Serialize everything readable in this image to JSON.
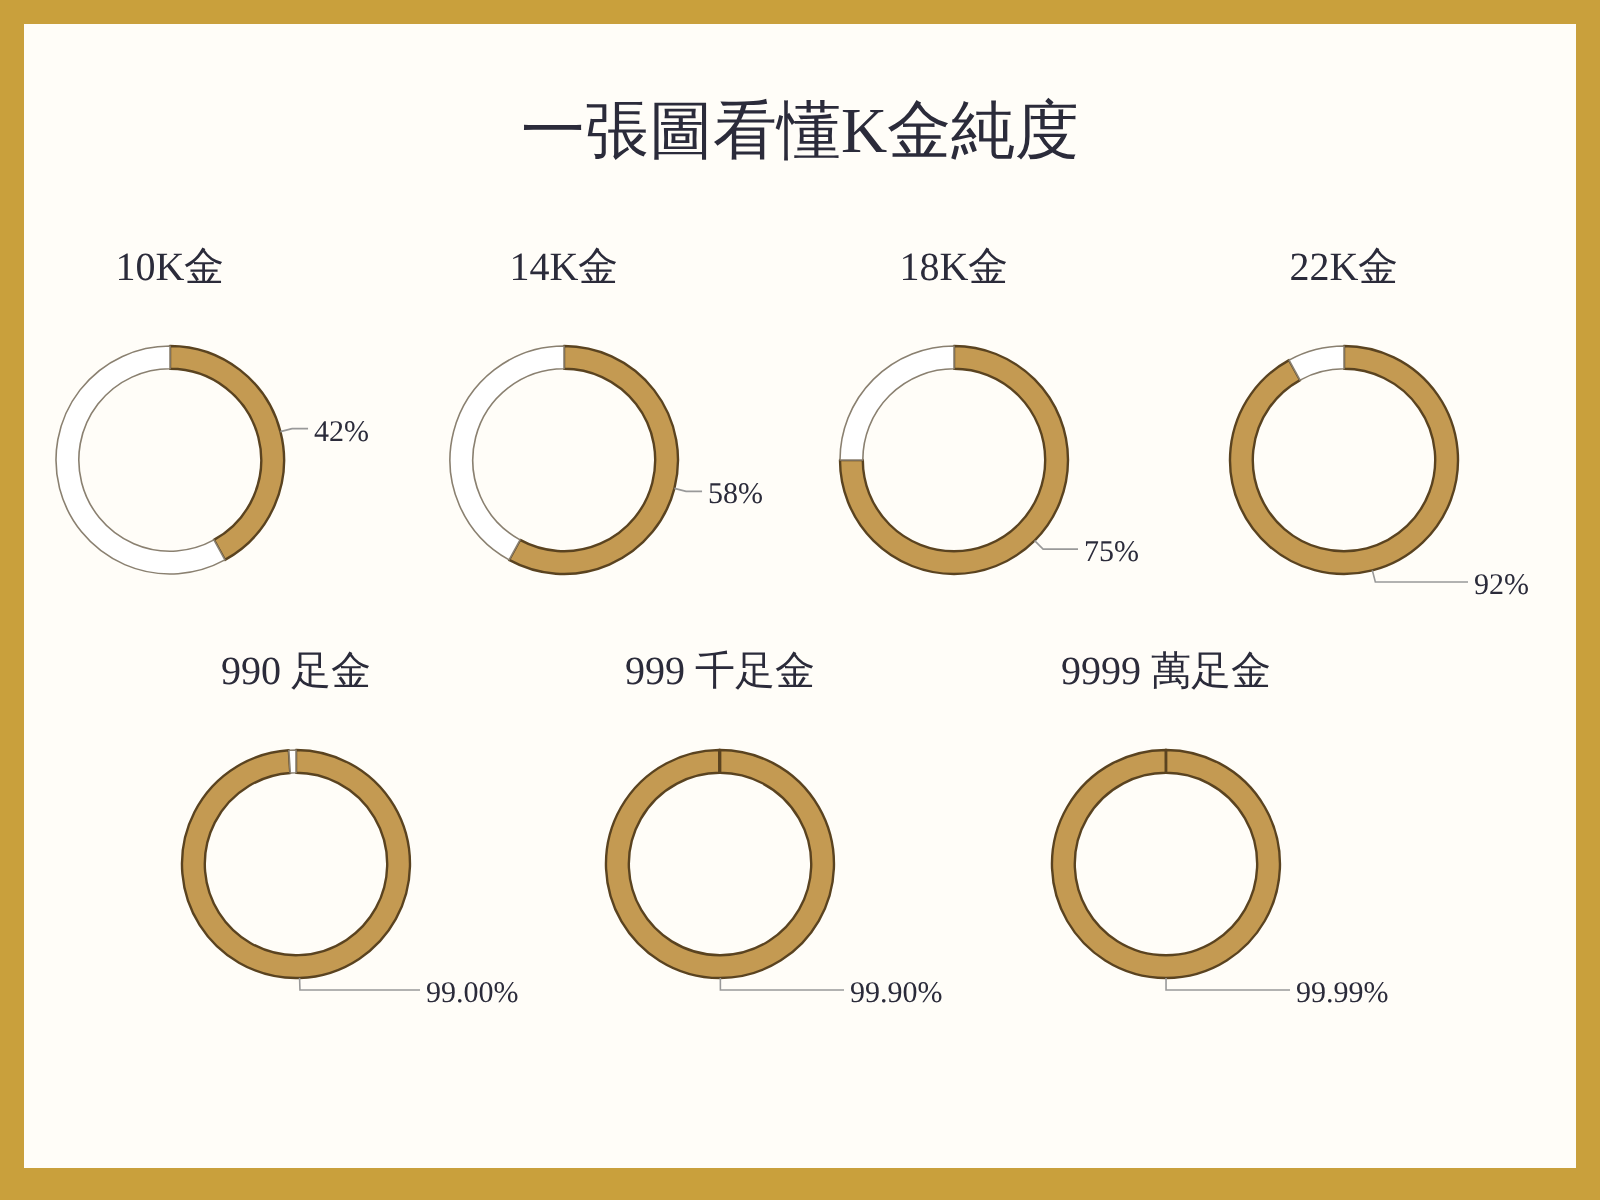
{
  "chart_data": [
    {
      "type": "other",
      "title": "一張圖看懂K金純度"
    },
    {
      "type": "donut",
      "title": "10K金",
      "categories": [
        null,
        null
      ],
      "values": [
        42,
        58
      ],
      "colors": [
        "#c49a52",
        "#ffffff"
      ],
      "value_labels": [
        "42%",
        null
      ]
    },
    {
      "type": "donut",
      "title": "14K金",
      "categories": [
        null,
        null
      ],
      "values": [
        58,
        42
      ],
      "colors": [
        "#c49a52",
        "#ffffff"
      ],
      "value_labels": [
        "58%",
        null
      ]
    },
    {
      "type": "donut",
      "title": "18K金",
      "categories": [
        null,
        null
      ],
      "values": [
        75,
        25
      ],
      "colors": [
        "#c49a52",
        "#ffffff"
      ],
      "value_labels": [
        "75%",
        null
      ]
    },
    {
      "type": "donut",
      "title": "22K金",
      "categories": [
        null,
        null
      ],
      "values": [
        92,
        8
      ],
      "colors": [
        "#c49a52",
        "#ffffff"
      ],
      "value_labels": [
        "92%",
        null
      ]
    },
    {
      "type": "donut",
      "title": "990 足金",
      "categories": [
        null,
        null
      ],
      "values": [
        99,
        1
      ],
      "colors": [
        "#c49a52",
        "#ffffff"
      ],
      "value_labels": [
        "99.00%",
        null
      ]
    },
    {
      "type": "donut",
      "title": "999 千足金",
      "categories": [
        null,
        null
      ],
      "values": [
        99.9,
        0.1
      ],
      "colors": [
        "#c49a52",
        "#6b3a12"
      ],
      "value_labels": [
        "99.90%",
        null
      ]
    },
    {
      "type": "donut",
      "title": "9999 萬足金",
      "categories": [
        null,
        null
      ],
      "values": [
        99.99,
        0.01
      ],
      "colors": [
        "#c49a52",
        "#6b3a12"
      ],
      "value_labels": [
        "99.99%",
        null
      ]
    }
  ]
}
